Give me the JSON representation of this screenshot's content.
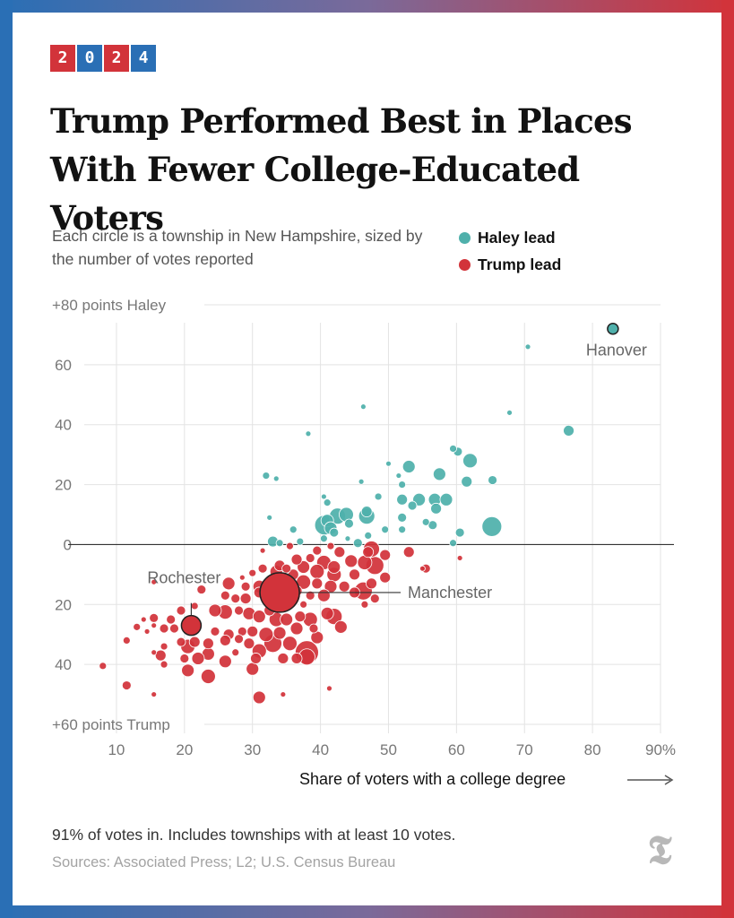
{
  "badge": {
    "digits": [
      "2",
      "0",
      "2",
      "4"
    ]
  },
  "title": "Trump Performed Best in Places With Fewer College-Educated Voters",
  "subtitle": "Each circle is a township in New Hampshire, sized by the number of votes reported",
  "legend": {
    "haley": "Haley lead",
    "trump": "Trump lead"
  },
  "colors": {
    "haley": "#4fb0ab",
    "trump": "#d2333a",
    "accent_blue": "#2a6fb5",
    "grid": "#e3e3e3",
    "axis_text": "#777777"
  },
  "footer": {
    "note": "91% of votes in. Includes townships with at least 10 votes.",
    "sources": "Sources: Associated Press; L2; U.S. Census Bureau",
    "logo_icon": "nyt-logo-icon"
  },
  "chart_data": {
    "type": "scatter",
    "xlabel": "Share of voters with a college degree",
    "xlim": [
      5,
      90
    ],
    "ylim": [
      -60,
      80
    ],
    "x_ticks": [
      {
        "v": 10,
        "label": "10"
      },
      {
        "v": 20,
        "label": "20"
      },
      {
        "v": 30,
        "label": "30"
      },
      {
        "v": 40,
        "label": "40"
      },
      {
        "v": 50,
        "label": "50"
      },
      {
        "v": 60,
        "label": "60"
      },
      {
        "v": 70,
        "label": "70"
      },
      {
        "v": 80,
        "label": "80"
      },
      {
        "v": 90,
        "label": "90%"
      }
    ],
    "y_ticks": [
      {
        "v": 80,
        "label": "+80 points Haley"
      },
      {
        "v": 60,
        "label": "60"
      },
      {
        "v": 40,
        "label": "40"
      },
      {
        "v": 20,
        "label": "20"
      },
      {
        "v": 0,
        "label": "0"
      },
      {
        "v": -20,
        "label": "20"
      },
      {
        "v": -40,
        "label": "40"
      },
      {
        "v": -60,
        "label": "+60 points Trump"
      }
    ],
    "annotations": [
      {
        "label": "Hanover",
        "x": 83,
        "y": 72
      },
      {
        "label": "Rochester",
        "x": 21,
        "y": -27
      },
      {
        "label": "Manchester",
        "x": 34,
        "y": -16
      }
    ],
    "points": [
      [
        83,
        72,
        6
      ],
      [
        70.5,
        66,
        3
      ],
      [
        67.8,
        44,
        3
      ],
      [
        76.5,
        38,
        6
      ],
      [
        46.3,
        46,
        3
      ],
      [
        38.2,
        37,
        3
      ],
      [
        59.5,
        32,
        4
      ],
      [
        60.2,
        31,
        5
      ],
      [
        62,
        28,
        8
      ],
      [
        50,
        27,
        3
      ],
      [
        53,
        26,
        7
      ],
      [
        57.5,
        23.5,
        7
      ],
      [
        65.3,
        21.5,
        5
      ],
      [
        61.5,
        21,
        6
      ],
      [
        51.5,
        23,
        3
      ],
      [
        32,
        23,
        4
      ],
      [
        33.5,
        22,
        3
      ],
      [
        46,
        21,
        3
      ],
      [
        52,
        20,
        4
      ],
      [
        40.5,
        16,
        3
      ],
      [
        41,
        14,
        4
      ],
      [
        48.5,
        16,
        4
      ],
      [
        52,
        15,
        6
      ],
      [
        54.5,
        15,
        7
      ],
      [
        56.8,
        15,
        7
      ],
      [
        58.5,
        15,
        7
      ],
      [
        53.5,
        13,
        5
      ],
      [
        57,
        12,
        6
      ],
      [
        46.8,
        11,
        6
      ],
      [
        46.8,
        9.5,
        9
      ],
      [
        43.8,
        10,
        8
      ],
      [
        42.5,
        9.5,
        9
      ],
      [
        41,
        8,
        7
      ],
      [
        40.6,
        6.5,
        11
      ],
      [
        41.5,
        5.5,
        7
      ],
      [
        44.2,
        7,
        5
      ],
      [
        32.5,
        9,
        3
      ],
      [
        52,
        9,
        5
      ],
      [
        55.5,
        7.5,
        4
      ],
      [
        56.5,
        6.5,
        5
      ],
      [
        65.2,
        6,
        11
      ],
      [
        60.5,
        4,
        5
      ],
      [
        52,
        5,
        4
      ],
      [
        49.5,
        5,
        4
      ],
      [
        36,
        5,
        4
      ],
      [
        42,
        4,
        5
      ],
      [
        40.5,
        2,
        4
      ],
      [
        44,
        2,
        3
      ],
      [
        47,
        3,
        4
      ],
      [
        33,
        1,
        6
      ],
      [
        34,
        0.5,
        4
      ],
      [
        45.5,
        0.5,
        5
      ],
      [
        59.5,
        0.5,
        4
      ],
      [
        37,
        1,
        4
      ],
      [
        60.5,
        -4.5,
        3
      ],
      [
        55.5,
        -8,
        5
      ],
      [
        53,
        -2.5,
        6
      ],
      [
        47,
        -2.5,
        6
      ],
      [
        42.8,
        -2.5,
        6
      ],
      [
        41.5,
        -0.5,
        4
      ],
      [
        35.5,
        -0.5,
        4
      ],
      [
        39.5,
        -2,
        5
      ],
      [
        38.5,
        -4.5,
        5
      ],
      [
        36.5,
        -5,
        6
      ],
      [
        37.5,
        -7.5,
        7
      ],
      [
        40.5,
        -6,
        8
      ],
      [
        42,
        -7.5,
        7
      ],
      [
        44.5,
        -5.5,
        7
      ],
      [
        46.5,
        -6,
        8
      ],
      [
        47.5,
        -1.5,
        9
      ],
      [
        49.5,
        -3.5,
        6
      ],
      [
        48,
        -7,
        10
      ],
      [
        49.5,
        -11,
        6
      ],
      [
        47.5,
        -13,
        6
      ],
      [
        45,
        -10,
        6
      ],
      [
        42,
        -10,
        8
      ],
      [
        39.5,
        -9,
        8
      ],
      [
        36,
        -10,
        6
      ],
      [
        34,
        -7,
        6
      ],
      [
        33.5,
        -9,
        7
      ],
      [
        31.5,
        -8,
        5
      ],
      [
        30,
        -9.5,
        4
      ],
      [
        28.5,
        -11,
        3
      ],
      [
        26.5,
        -13,
        7
      ],
      [
        29,
        -14,
        5
      ],
      [
        31,
        -14,
        7
      ],
      [
        32.5,
        -13,
        7
      ],
      [
        35.5,
        -13,
        6
      ],
      [
        37.5,
        -12.5,
        8
      ],
      [
        39.5,
        -13,
        6
      ],
      [
        41.5,
        -14,
        7
      ],
      [
        43.5,
        -14,
        6
      ],
      [
        46.3,
        -15.5,
        10
      ],
      [
        48,
        -18,
        5
      ],
      [
        45,
        -16,
        6
      ],
      [
        40.5,
        -17,
        7
      ],
      [
        38.5,
        -17,
        5
      ],
      [
        36.5,
        -15.5,
        6
      ],
      [
        34.2,
        -16,
        22
      ],
      [
        31,
        -16,
        6
      ],
      [
        29,
        -18,
        6
      ],
      [
        27.5,
        -18,
        5
      ],
      [
        26,
        -17,
        5
      ],
      [
        22.5,
        -15,
        5
      ],
      [
        21.5,
        -20.5,
        4
      ],
      [
        24.5,
        -22,
        7
      ],
      [
        26,
        -22.5,
        8
      ],
      [
        28,
        -22,
        5
      ],
      [
        29.5,
        -23,
        7
      ],
      [
        31,
        -24,
        7
      ],
      [
        32.5,
        -22,
        6
      ],
      [
        33.5,
        -25,
        8
      ],
      [
        35,
        -25,
        7
      ],
      [
        37,
        -24,
        6
      ],
      [
        38.5,
        -25,
        8
      ],
      [
        41,
        -23,
        7
      ],
      [
        42,
        -24,
        9
      ],
      [
        43,
        -27.5,
        7
      ],
      [
        39,
        -28,
        5
      ],
      [
        36.5,
        -28,
        7
      ],
      [
        34,
        -29.5,
        7
      ],
      [
        32,
        -30,
        8
      ],
      [
        30,
        -29,
        6
      ],
      [
        28.5,
        -29,
        5
      ],
      [
        26.5,
        -30,
        6
      ],
      [
        24.5,
        -29,
        5
      ],
      [
        21,
        -27,
        11
      ],
      [
        18.5,
        -28,
        5
      ],
      [
        17,
        -28,
        5
      ],
      [
        15.5,
        -27,
        3
      ],
      [
        14,
        -25,
        3
      ],
      [
        15.5,
        -24.5,
        5
      ],
      [
        18,
        -25,
        5
      ],
      [
        19.5,
        -22,
        5
      ],
      [
        21.5,
        -32.5,
        6
      ],
      [
        23.5,
        -33,
        6
      ],
      [
        26,
        -32,
        6
      ],
      [
        28,
        -31.5,
        5
      ],
      [
        29.5,
        -33,
        6
      ],
      [
        31,
        -35.5,
        8
      ],
      [
        33,
        -33,
        10
      ],
      [
        35.5,
        -33,
        8
      ],
      [
        38,
        -36,
        13
      ],
      [
        39.5,
        -31,
        7
      ],
      [
        36.5,
        -38,
        6
      ],
      [
        34.5,
        -38,
        6
      ],
      [
        30.5,
        -38,
        6
      ],
      [
        30,
        -41.5,
        7
      ],
      [
        27.5,
        -36,
        4
      ],
      [
        26,
        -39,
        7
      ],
      [
        23.5,
        -36.5,
        7
      ],
      [
        22,
        -38,
        7
      ],
      [
        20,
        -38,
        5
      ],
      [
        20.5,
        -34,
        8
      ],
      [
        19.5,
        -32.5,
        5
      ],
      [
        17,
        -34,
        4
      ],
      [
        16.5,
        -37,
        6
      ],
      [
        15.5,
        -36,
        3
      ],
      [
        17,
        -40,
        4
      ],
      [
        14.5,
        -29,
        3
      ],
      [
        13,
        -27.5,
        4
      ],
      [
        11.5,
        -32,
        4
      ],
      [
        8,
        -40.5,
        4
      ],
      [
        20.5,
        -42,
        7
      ],
      [
        23.5,
        -44,
        8
      ],
      [
        11.5,
        -47,
        5
      ],
      [
        15.5,
        -50,
        3
      ],
      [
        31,
        -51,
        7
      ],
      [
        34.5,
        -50,
        3
      ],
      [
        41.3,
        -48,
        3
      ],
      [
        38,
        -37.5,
        9
      ],
      [
        37.5,
        -20,
        4
      ],
      [
        33,
        -20,
        6
      ],
      [
        46.5,
        -20,
        4
      ],
      [
        55,
        -8,
        3
      ],
      [
        35,
        -8,
        5
      ],
      [
        31.5,
        -2,
        3
      ],
      [
        15.5,
        -12.5,
        3
      ]
    ]
  }
}
